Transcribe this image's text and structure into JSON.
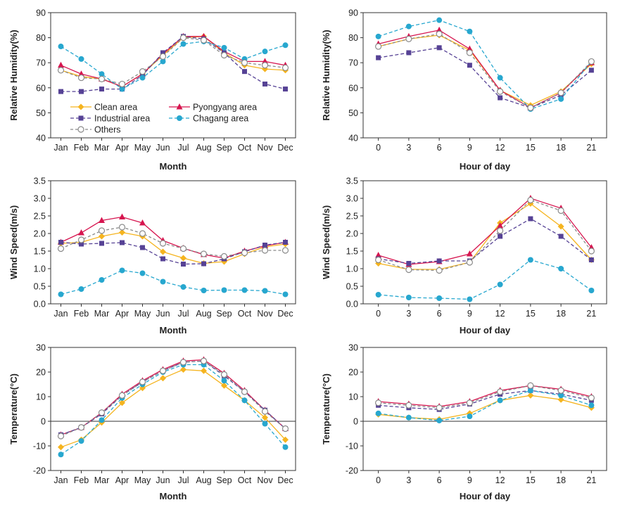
{
  "chart_data": [
    {
      "type": "line",
      "id": "rh_month",
      "xlabel": "Month",
      "ylabel": "Relative Humidity(%)",
      "ylim": [
        40,
        90
      ],
      "yticks": [
        40,
        50,
        60,
        70,
        80,
        90
      ],
      "categories": [
        "Jan",
        "Feb",
        "Mar",
        "Apr",
        "May",
        "Jun",
        "Jul",
        "Aug",
        "Sep",
        "Oct",
        "Nov",
        "Dec"
      ],
      "legend": "inside lower-left",
      "series": [
        {
          "name": "Clean area",
          "values": [
            67,
            64.5,
            63.5,
            60.5,
            65.5,
            73,
            80,
            80.5,
            74,
            69,
            67.5,
            67
          ]
        },
        {
          "name": "Pyongyang area",
          "values": [
            69,
            65.5,
            63.5,
            60.5,
            65.5,
            73.5,
            80.5,
            80.5,
            74.5,
            70.5,
            70.5,
            69
          ]
        },
        {
          "name": "Industrial area",
          "values": [
            58.5,
            58.5,
            59.5,
            59.5,
            65,
            74,
            80.5,
            79.5,
            74,
            66.5,
            61.5,
            59.5
          ]
        },
        {
          "name": "Chagang area",
          "values": [
            76.5,
            71.5,
            65.5,
            59.5,
            64,
            70.5,
            77.5,
            78.5,
            76,
            71.5,
            74.5,
            77
          ]
        },
        {
          "name": "Others",
          "values": [
            67,
            64,
            63.5,
            61.5,
            66.5,
            72.5,
            80,
            79,
            73,
            70,
            69,
            68
          ]
        }
      ]
    },
    {
      "type": "line",
      "id": "rh_hour",
      "xlabel": "Hour of day",
      "ylabel": "Relative Humidity(%)",
      "ylim": [
        40,
        90
      ],
      "yticks": [
        40,
        50,
        60,
        70,
        80,
        90
      ],
      "categories": [
        "0",
        "3",
        "6",
        "9",
        "12",
        "15",
        "18",
        "21"
      ],
      "series": [
        {
          "name": "Clean area",
          "values": [
            76.5,
            79.5,
            81,
            75,
            59,
            53,
            58.5,
            69.5
          ]
        },
        {
          "name": "Pyongyang area",
          "values": [
            77.5,
            80.5,
            83,
            75.5,
            59,
            52,
            58,
            70
          ]
        },
        {
          "name": "Industrial area",
          "values": [
            72,
            74,
            76,
            69,
            56,
            52,
            57,
            67
          ]
        },
        {
          "name": "Chagang area",
          "values": [
            80.5,
            84.5,
            87,
            82.5,
            64,
            51.5,
            55.5,
            70.5
          ]
        },
        {
          "name": "Others",
          "values": [
            76.5,
            79.5,
            81.5,
            74,
            58.5,
            52,
            58,
            70.5
          ]
        }
      ]
    },
    {
      "type": "line",
      "id": "ws_month",
      "xlabel": "Month",
      "ylabel": "Wind Speed(m/s)",
      "ylim": [
        0,
        3.5
      ],
      "yticks": [
        0.0,
        0.5,
        1.0,
        1.5,
        2.0,
        2.5,
        3.0,
        3.5
      ],
      "categories": [
        "Jan",
        "Feb",
        "Mar",
        "Apr",
        "May",
        "Jun",
        "Jul",
        "Aug",
        "Sep",
        "Oct",
        "Nov",
        "Dec"
      ],
      "series": [
        {
          "name": "Clean area",
          "values": [
            1.72,
            1.75,
            1.92,
            2.03,
            1.92,
            1.48,
            1.3,
            1.15,
            1.2,
            1.42,
            1.62,
            1.7
          ]
        },
        {
          "name": "Pyongyang area",
          "values": [
            1.75,
            2.02,
            2.37,
            2.47,
            2.3,
            1.8,
            1.58,
            1.4,
            1.3,
            1.5,
            1.65,
            1.75
          ]
        },
        {
          "name": "Industrial area",
          "values": [
            1.75,
            1.7,
            1.72,
            1.74,
            1.6,
            1.28,
            1.13,
            1.14,
            1.28,
            1.48,
            1.67,
            1.75
          ]
        },
        {
          "name": "Chagang area",
          "values": [
            0.27,
            0.42,
            0.68,
            0.95,
            0.87,
            0.63,
            0.48,
            0.38,
            0.39,
            0.39,
            0.37,
            0.27
          ]
        },
        {
          "name": "Others",
          "values": [
            1.57,
            1.82,
            2.08,
            2.18,
            2.0,
            1.72,
            1.57,
            1.42,
            1.35,
            1.45,
            1.52,
            1.52
          ]
        }
      ]
    },
    {
      "type": "line",
      "id": "ws_hour",
      "xlabel": "Hour of day",
      "ylabel": "Wind Speed(m/s)",
      "ylim": [
        0,
        3.5
      ],
      "yticks": [
        0.0,
        0.5,
        1.0,
        1.5,
        2.0,
        2.5,
        3.0,
        3.5
      ],
      "categories": [
        "0",
        "3",
        "6",
        "9",
        "12",
        "15",
        "18",
        "21"
      ],
      "series": [
        {
          "name": "Clean area",
          "values": [
            1.15,
            0.98,
            0.98,
            1.18,
            2.3,
            2.85,
            2.2,
            1.25
          ]
        },
        {
          "name": "Pyongyang area",
          "values": [
            1.38,
            1.12,
            1.2,
            1.42,
            2.22,
            3.0,
            2.72,
            1.6
          ]
        },
        {
          "name": "Industrial area",
          "values": [
            1.28,
            1.15,
            1.22,
            1.22,
            1.92,
            2.42,
            1.92,
            1.25
          ]
        },
        {
          "name": "Chagang area",
          "values": [
            0.26,
            0.18,
            0.16,
            0.13,
            0.55,
            1.25,
            1.0,
            0.38
          ]
        },
        {
          "name": "Others",
          "values": [
            1.25,
            0.97,
            0.95,
            1.18,
            2.08,
            2.95,
            2.65,
            1.5
          ]
        }
      ]
    },
    {
      "type": "line",
      "id": "t_month",
      "xlabel": "Month",
      "ylabel": "Temperature(°C)",
      "ylim": [
        -20,
        30
      ],
      "yticks": [
        -20,
        -10,
        0,
        10,
        20,
        30
      ],
      "categories": [
        "Jan",
        "Feb",
        "Mar",
        "Apr",
        "May",
        "Jun",
        "Jul",
        "Aug",
        "Sep",
        "Oct",
        "Nov",
        "Dec"
      ],
      "series": [
        {
          "name": "Clean area",
          "values": [
            -10.5,
            -7.5,
            -0.5,
            7.5,
            13.5,
            17.5,
            21,
            20.5,
            14.5,
            8.5,
            1.5,
            -7.5
          ]
        },
        {
          "name": "Pyongyang area",
          "values": [
            -5.5,
            -2.5,
            3.5,
            11,
            16.5,
            21,
            24.5,
            25,
            19.5,
            12.5,
            4.5,
            -3
          ]
        },
        {
          "name": "Industrial area",
          "values": [
            -5.5,
            -2.5,
            3,
            10.5,
            16,
            20.5,
            24,
            24.5,
            18.5,
            12,
            4.5,
            -3
          ]
        },
        {
          "name": "Chagang area",
          "values": [
            -13.5,
            -8,
            0.5,
            9.5,
            15,
            20,
            23,
            23,
            16.5,
            8.5,
            -1,
            -10.5
          ]
        },
        {
          "name": "Others",
          "values": [
            -6,
            -2.5,
            3.5,
            10.5,
            16,
            20.5,
            24,
            24.5,
            19,
            12,
            4,
            -3
          ]
        }
      ]
    },
    {
      "type": "line",
      "id": "t_hour",
      "xlabel": "Hour of day",
      "ylabel": "Temperature(°C)",
      "ylim": [
        -20,
        30
      ],
      "yticks": [
        -20,
        -10,
        0,
        10,
        20,
        30
      ],
      "categories": [
        "0",
        "3",
        "6",
        "9",
        "12",
        "15",
        "18",
        "21"
      ],
      "series": [
        {
          "name": "Clean area",
          "values": [
            2.8,
            1.5,
            0.8,
            3.2,
            8.5,
            10.5,
            8.8,
            5.5
          ]
        },
        {
          "name": "Pyongyang area",
          "values": [
            8,
            7,
            6,
            8,
            12.5,
            14.5,
            13,
            10
          ]
        },
        {
          "name": "Industrial area",
          "values": [
            6.5,
            5.5,
            4.8,
            7,
            11,
            12.5,
            11,
            8.5
          ]
        },
        {
          "name": "Chagang area",
          "values": [
            3.2,
            1.5,
            0.3,
            2,
            8.5,
            12.5,
            10.5,
            6.5
          ]
        },
        {
          "name": "Others",
          "values": [
            7.5,
            6.5,
            5.5,
            7.5,
            12,
            14.5,
            12.5,
            9.5
          ]
        }
      ]
    }
  ],
  "styles": {
    "Clean area": {
      "color": "#f5b41f",
      "marker": "diamond",
      "dash": ""
    },
    "Pyongyang area": {
      "color": "#d6154f",
      "marker": "triangle",
      "dash": ""
    },
    "Industrial area": {
      "color": "#564295",
      "marker": "square",
      "dash": "5,3"
    },
    "Chagang area": {
      "color": "#27a7cf",
      "marker": "circle",
      "dash": "5,3"
    },
    "Others": {
      "color": "#8a8a8a",
      "marker": "open-circle",
      "dash": "4,3"
    }
  }
}
